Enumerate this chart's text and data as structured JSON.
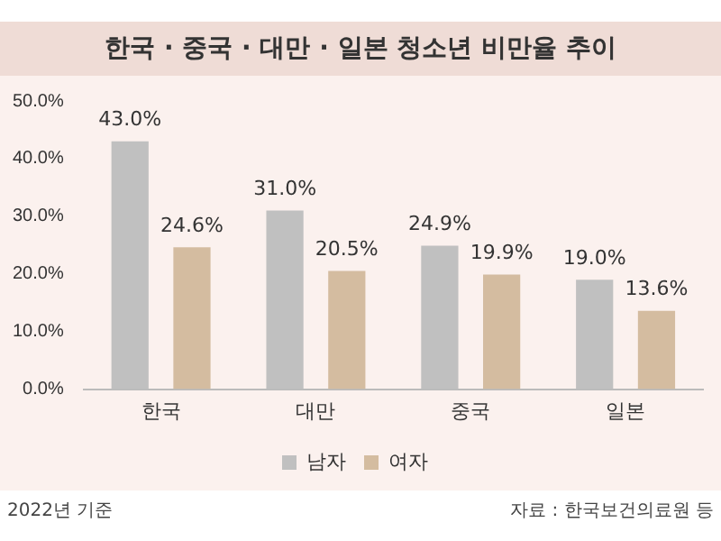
{
  "chart_data": {
    "type": "bar",
    "title": "한국 · 중국 · 대만 · 일본 청소년 비만율 추이",
    "categories": [
      "한국",
      "대만",
      "중국",
      "일본"
    ],
    "series": [
      {
        "name": "남자",
        "color": "#c0c0c0",
        "values": [
          43.0,
          31.0,
          24.9,
          19.0
        ]
      },
      {
        "name": "여자",
        "color": "#d4bca0",
        "values": [
          24.6,
          20.5,
          19.9,
          13.6
        ]
      }
    ],
    "ylim": [
      0,
      50
    ],
    "yticks": [
      {
        "value": 0,
        "label": "0.0%"
      },
      {
        "value": 10,
        "label": "10.0%"
      },
      {
        "value": 20,
        "label": "20.0%"
      },
      {
        "value": 30,
        "label": "30.0%"
      },
      {
        "value": 40,
        "label": "40.0%"
      },
      {
        "value": 50,
        "label": "50.0%"
      }
    ],
    "grid": false,
    "legend": "bottom",
    "value_labels": [
      [
        "43.0%",
        "31.0%",
        "24.9%",
        "19.0%"
      ],
      [
        "24.6%",
        "20.5%",
        "19.9%",
        "13.6%"
      ]
    ],
    "annotations": [
      "2022년 기준",
      "자료 : 한국보건의료원 등"
    ]
  }
}
